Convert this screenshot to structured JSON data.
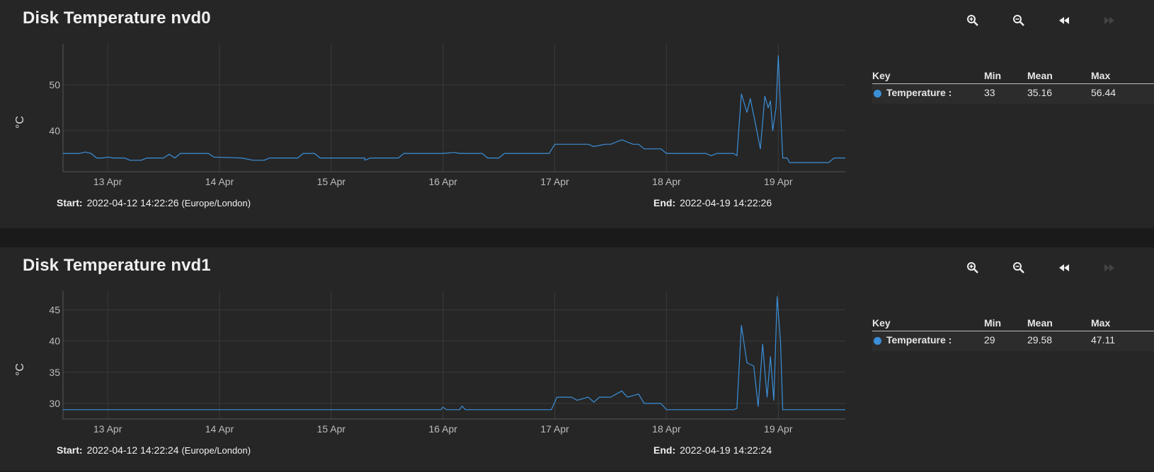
{
  "charts": [
    {
      "title": "Disk Temperature nvd0",
      "toolbar": [
        "zoom-in-icon",
        "zoom-out-icon",
        "rewind-icon",
        "fast-forward-icon"
      ],
      "range": {
        "start_label": "Start:",
        "start_value": "2022-04-12 14:22:26",
        "timezone": "(Europe/London)",
        "end_label": "End:",
        "end_value": "2022-04-19 14:22:26"
      },
      "legend": {
        "headers": [
          "Key",
          "Min",
          "Mean",
          "Max"
        ],
        "rows": [
          {
            "name": "Temperature :",
            "min": "33",
            "mean": "35.16",
            "max": "56.44",
            "color": "#3b8fd9"
          }
        ]
      }
    },
    {
      "title": "Disk Temperature nvd1",
      "toolbar": [
        "zoom-in-icon",
        "zoom-out-icon",
        "rewind-icon",
        "fast-forward-icon"
      ],
      "range": {
        "start_label": "Start:",
        "start_value": "2022-04-12 14:22:24",
        "timezone": "(Europe/London)",
        "end_label": "End:",
        "end_value": "2022-04-19 14:22:24"
      },
      "legend": {
        "headers": [
          "Key",
          "Min",
          "Mean",
          "Max"
        ],
        "rows": [
          {
            "name": "Temperature :",
            "min": "29",
            "mean": "29.58",
            "max": "47.11",
            "color": "#3b8fd9"
          }
        ]
      }
    }
  ],
  "chart_data": [
    {
      "type": "line",
      "title": "Disk Temperature nvd0",
      "ylabel": "°C",
      "xlabel": "",
      "xlim": [
        12.6,
        19.6
      ],
      "ylim": [
        31,
        59
      ],
      "yticks": [
        40,
        50
      ],
      "xticks": [
        {
          "label": "13 Apr",
          "x": 13
        },
        {
          "label": "14 Apr",
          "x": 14
        },
        {
          "label": "15 Apr",
          "x": 15
        },
        {
          "label": "16 Apr",
          "x": 16
        },
        {
          "label": "17 Apr",
          "x": 17
        },
        {
          "label": "18 Apr",
          "x": 18
        },
        {
          "label": "19 Apr",
          "x": 19
        }
      ],
      "grid": true,
      "color": "#3b8fd9",
      "series": [
        {
          "points": [
            [
              12.6,
              35
            ],
            [
              12.75,
              35
            ],
            [
              12.8,
              35.3
            ],
            [
              12.85,
              35
            ],
            [
              12.9,
              34
            ],
            [
              12.95,
              34
            ],
            [
              13.0,
              34.2
            ],
            [
              13.05,
              34
            ],
            [
              13.15,
              34
            ],
            [
              13.2,
              33.5
            ],
            [
              13.3,
              33.5
            ],
            [
              13.35,
              34
            ],
            [
              13.5,
              34
            ],
            [
              13.55,
              34.8
            ],
            [
              13.6,
              34
            ],
            [
              13.65,
              35
            ],
            [
              13.9,
              35
            ],
            [
              13.95,
              34.2
            ],
            [
              14.2,
              34
            ],
            [
              14.3,
              33.5
            ],
            [
              14.4,
              33.5
            ],
            [
              14.45,
              34
            ],
            [
              14.7,
              34
            ],
            [
              14.75,
              35
            ],
            [
              14.85,
              35
            ],
            [
              14.9,
              34
            ],
            [
              15.3,
              34
            ],
            [
              15.3,
              33.5
            ],
            [
              15.35,
              34
            ],
            [
              15.6,
              34
            ],
            [
              15.65,
              35
            ],
            [
              16.0,
              35
            ],
            [
              16.1,
              35.2
            ],
            [
              16.15,
              35
            ],
            [
              16.35,
              35
            ],
            [
              16.4,
              34
            ],
            [
              16.5,
              34
            ],
            [
              16.55,
              35
            ],
            [
              16.95,
              35
            ],
            [
              17.0,
              37
            ],
            [
              17.3,
              37
            ],
            [
              17.35,
              36.5
            ],
            [
              17.45,
              37
            ],
            [
              17.5,
              37
            ],
            [
              17.55,
              37.5
            ],
            [
              17.6,
              38
            ],
            [
              17.65,
              37.5
            ],
            [
              17.7,
              37
            ],
            [
              17.75,
              37
            ],
            [
              17.8,
              36
            ],
            [
              17.95,
              36
            ],
            [
              18.0,
              35
            ],
            [
              18.35,
              35
            ],
            [
              18.4,
              34.5
            ],
            [
              18.45,
              35
            ],
            [
              18.6,
              35
            ],
            [
              18.63,
              34.5
            ],
            [
              18.67,
              48
            ],
            [
              18.72,
              44
            ],
            [
              18.75,
              47
            ],
            [
              18.8,
              41
            ],
            [
              18.84,
              36
            ],
            [
              18.88,
              47.5
            ],
            [
              18.91,
              45
            ],
            [
              18.93,
              46.5
            ],
            [
              18.95,
              40
            ],
            [
              18.98,
              45
            ],
            [
              19.0,
              56.4
            ],
            [
              19.02,
              45
            ],
            [
              19.04,
              34
            ],
            [
              19.08,
              34
            ],
            [
              19.1,
              33
            ],
            [
              19.45,
              33
            ],
            [
              19.5,
              34
            ],
            [
              19.6,
              34
            ]
          ]
        }
      ]
    },
    {
      "type": "line",
      "title": "Disk Temperature nvd1",
      "ylabel": "°C",
      "xlabel": "",
      "xlim": [
        12.6,
        19.6
      ],
      "ylim": [
        27.5,
        48
      ],
      "yticks": [
        30,
        35,
        40,
        45
      ],
      "xticks": [
        {
          "label": "13 Apr",
          "x": 13
        },
        {
          "label": "14 Apr",
          "x": 14
        },
        {
          "label": "15 Apr",
          "x": 15
        },
        {
          "label": "16 Apr",
          "x": 16
        },
        {
          "label": "17 Apr",
          "x": 17
        },
        {
          "label": "18 Apr",
          "x": 18
        },
        {
          "label": "19 Apr",
          "x": 19
        }
      ],
      "grid": true,
      "color": "#3b8fd9",
      "series": [
        {
          "points": [
            [
              12.6,
              29
            ],
            [
              15.98,
              29
            ],
            [
              16.0,
              29.4
            ],
            [
              16.03,
              29
            ],
            [
              16.15,
              29
            ],
            [
              16.17,
              29.6
            ],
            [
              16.2,
              29
            ],
            [
              16.97,
              29
            ],
            [
              17.02,
              31
            ],
            [
              17.15,
              31
            ],
            [
              17.2,
              30.5
            ],
            [
              17.3,
              31
            ],
            [
              17.35,
              30.2
            ],
            [
              17.4,
              31
            ],
            [
              17.5,
              31
            ],
            [
              17.55,
              31.5
            ],
            [
              17.6,
              32
            ],
            [
              17.65,
              31
            ],
            [
              17.75,
              31.5
            ],
            [
              17.8,
              30
            ],
            [
              17.95,
              30
            ],
            [
              18.0,
              29
            ],
            [
              18.6,
              29
            ],
            [
              18.63,
              29.2
            ],
            [
              18.67,
              42.5
            ],
            [
              18.72,
              36.5
            ],
            [
              18.78,
              36
            ],
            [
              18.82,
              29.5
            ],
            [
              18.86,
              39.5
            ],
            [
              18.9,
              31
            ],
            [
              18.93,
              37.5
            ],
            [
              18.96,
              30.5
            ],
            [
              18.99,
              47.1
            ],
            [
              19.02,
              40
            ],
            [
              19.04,
              29
            ],
            [
              19.6,
              29
            ]
          ]
        }
      ]
    }
  ]
}
